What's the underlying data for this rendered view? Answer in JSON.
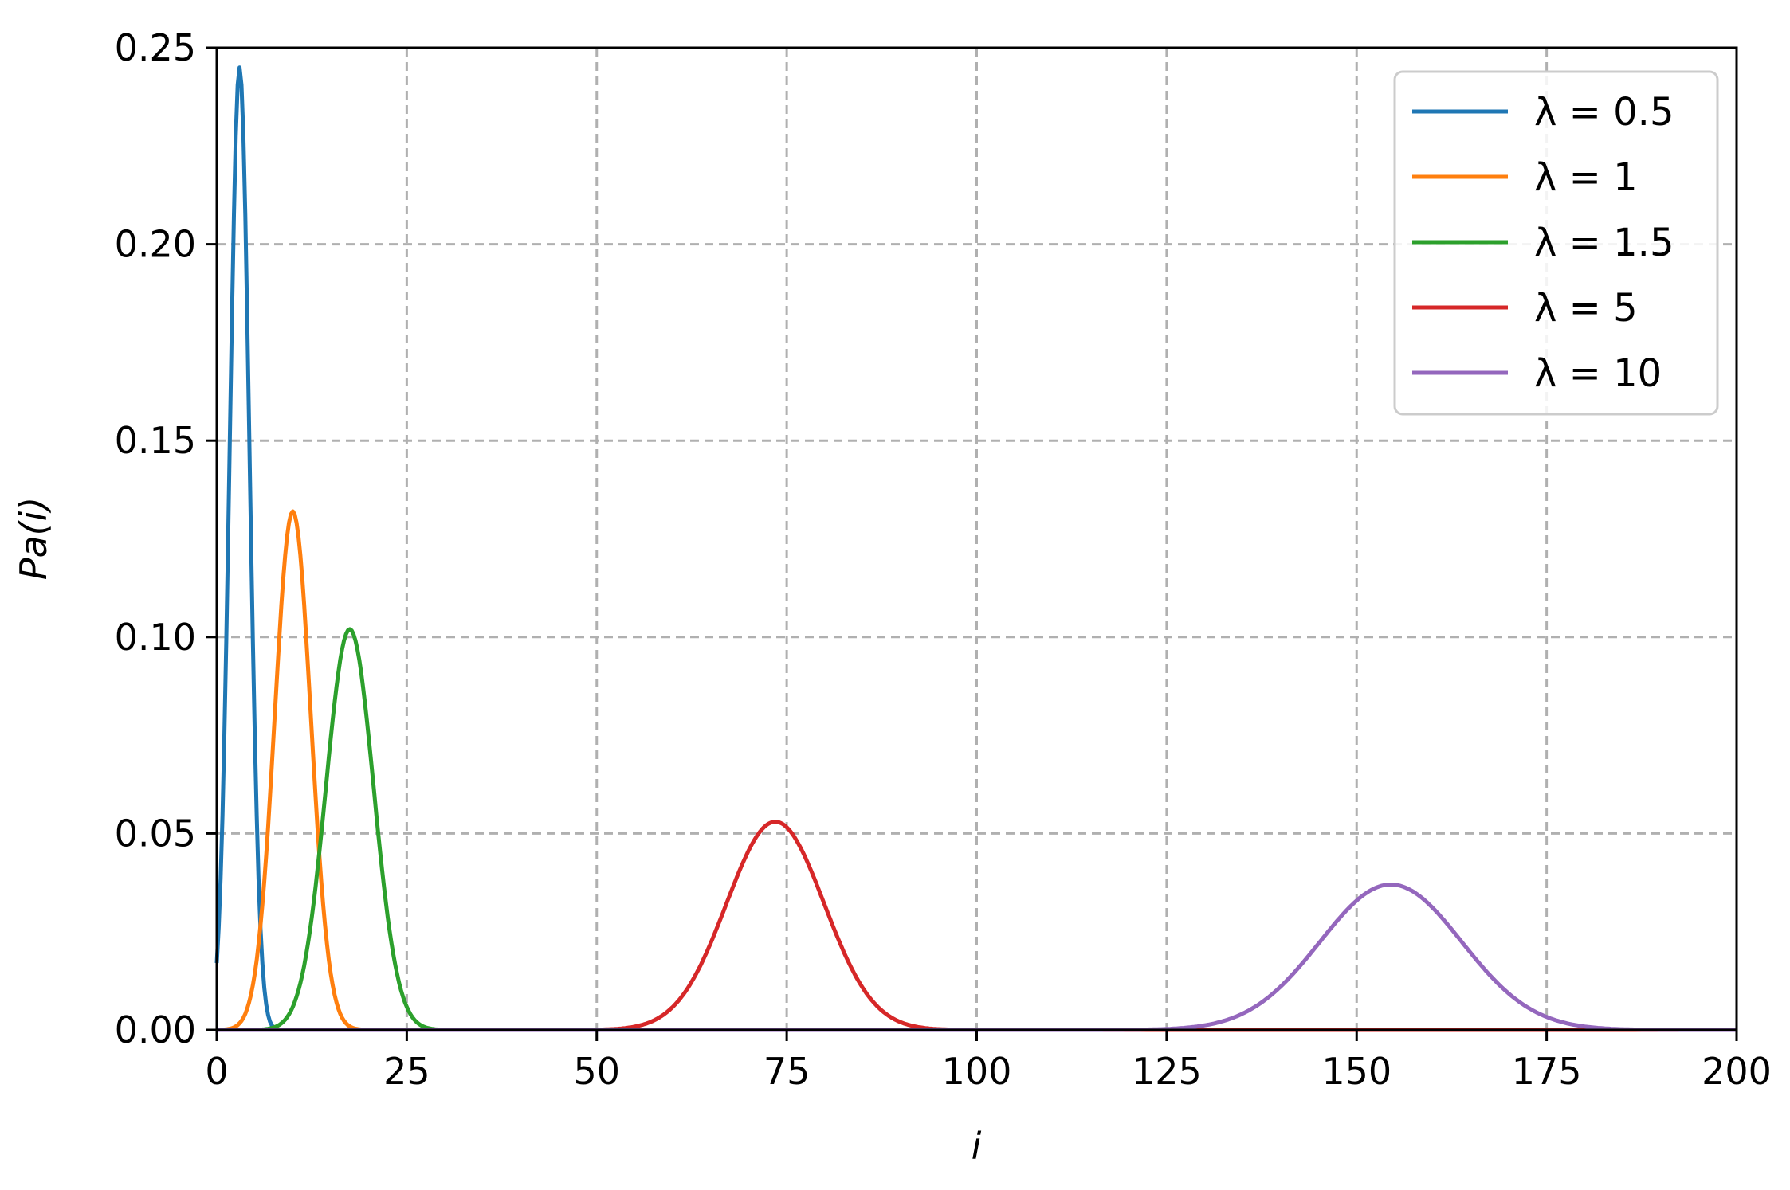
{
  "chart_data": {
    "type": "line",
    "xlabel": "i",
    "ylabel": "Pa(i)",
    "xlim": [
      0,
      200
    ],
    "ylim": [
      0,
      0.25
    ],
    "xticks": [
      "0",
      "25",
      "50",
      "75",
      "100",
      "125",
      "150",
      "175",
      "200"
    ],
    "yticks": [
      "0.00",
      "0.05",
      "0.10",
      "0.15",
      "0.20",
      "0.25"
    ],
    "grid": true,
    "legend_position": "top-right",
    "series": [
      {
        "name": "λ = 0.5",
        "color": "#1f77b4",
        "peak_x": 3,
        "peak_y": 0.245
      },
      {
        "name": "λ = 1",
        "color": "#ff7f0e",
        "peak_x": 10,
        "peak_y": 0.132
      },
      {
        "name": "λ = 1.5",
        "color": "#2ca02c",
        "peak_x": 17.5,
        "peak_y": 0.102
      },
      {
        "name": "λ = 5",
        "color": "#d62728",
        "peak_x": 73.5,
        "peak_y": 0.053
      },
      {
        "name": "λ = 10",
        "color": "#9467bd",
        "peak_x": 154.5,
        "peak_y": 0.037
      }
    ]
  }
}
